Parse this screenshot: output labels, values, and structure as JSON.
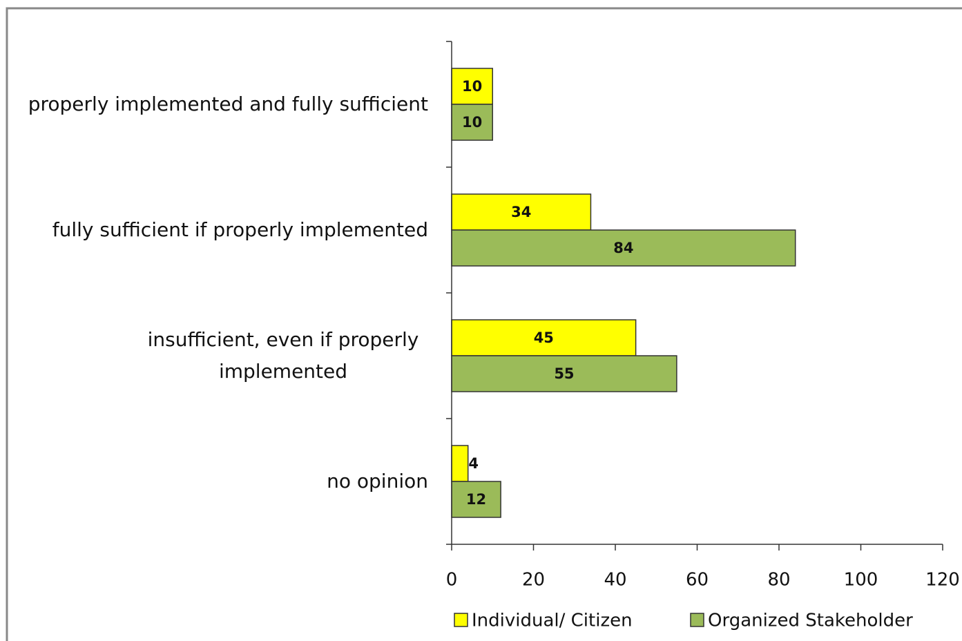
{
  "chart_data": {
    "type": "barh",
    "categories": [
      "properly implemented and fully sufficient",
      "fully sufficient if properly implemented",
      "insufficient, even if properly implemented",
      "no opinion"
    ],
    "series": [
      {
        "name": "Individual/ Citizen",
        "color": "#ffff00",
        "values": [
          10,
          34,
          45,
          4
        ]
      },
      {
        "name": "Organized Stakeholder",
        "color": "#9bbb59",
        "values": [
          10,
          84,
          55,
          12
        ]
      }
    ],
    "xlim": [
      0,
      120
    ],
    "xticks": [
      0,
      20,
      40,
      60,
      80,
      100,
      120
    ],
    "legend": "bottom"
  }
}
